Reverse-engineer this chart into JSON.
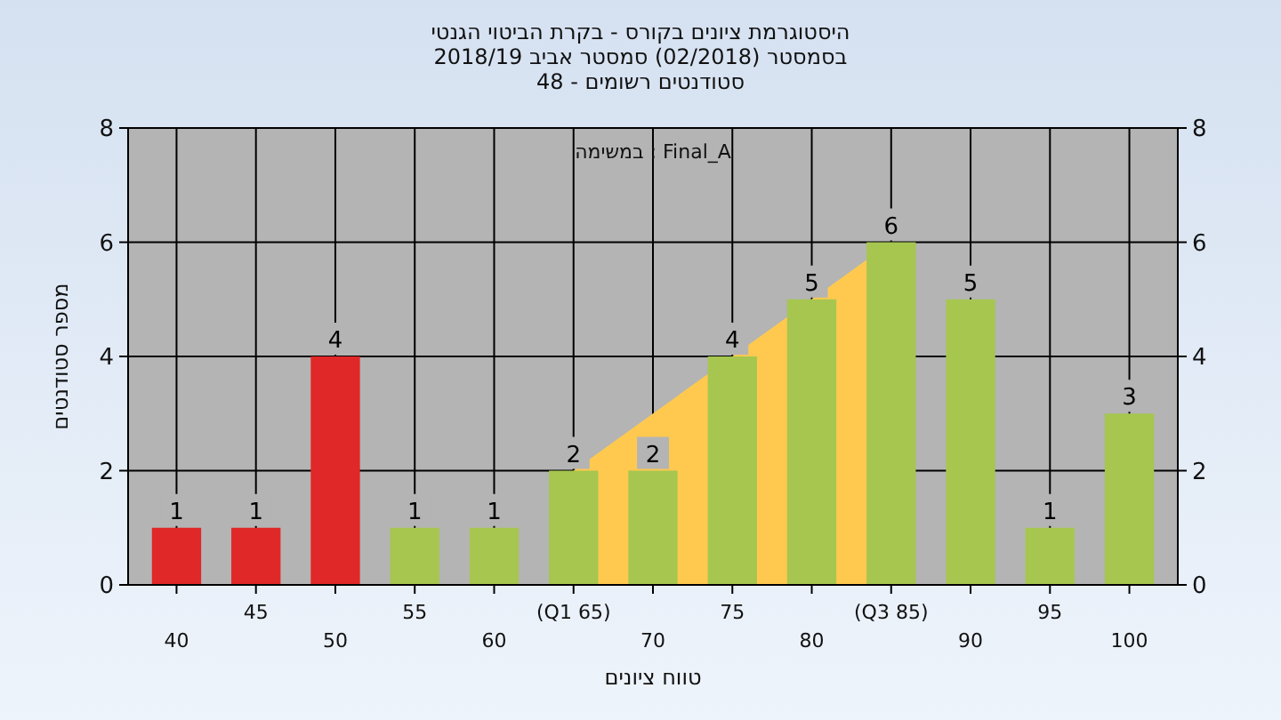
{
  "chart_data": {
    "type": "bar",
    "title": "היסטוגרמת ציונים בקורס - בקרת הביטוי הגנטי",
    "subtitle": "בסמסטר (02/2018) סמסטר אביב 2018/19\nסטודנטים רשומים - 48",
    "xlabel": "טווח ציונים",
    "ylabel": "מספר סטודנטים",
    "annotations": [
      "Final_A : במשימה"
    ],
    "categories": [
      "40",
      "45",
      "50",
      "55",
      "60",
      "(Q1 65)",
      "70",
      "75",
      "80",
      "(Q3 85)",
      "90",
      "95",
      "100"
    ],
    "series": [
      {
        "type": "area",
        "color": "#ffc94f",
        "values": [
          null,
          null,
          null,
          null,
          null,
          2,
          3,
          4,
          5,
          6,
          null,
          null,
          null
        ]
      },
      {
        "colors": [
          "#e02828",
          "#e02828",
          "#e02828",
          "#a6c650",
          "#a6c650",
          "#a6c650",
          "#a6c650",
          "#a6c650",
          "#a6c650",
          "#a6c650",
          "#a6c650",
          "#a6c650",
          "#a6c650"
        ],
        "values": [
          1,
          1,
          4,
          1,
          1,
          2,
          2,
          4,
          5,
          6,
          5,
          1,
          3
        ],
        "value_labels": [
          "1",
          "1",
          "4",
          "1",
          "1",
          "2",
          "2",
          "4",
          "5",
          "6",
          "5",
          "1",
          "3"
        ]
      }
    ],
    "ylim": [
      0,
      8
    ],
    "yticks": [
      0,
      2,
      4,
      6,
      8
    ],
    "y2lim": [
      0,
      8
    ],
    "y2ticks": [
      0,
      2,
      4,
      6,
      8
    ],
    "grid": true
  }
}
